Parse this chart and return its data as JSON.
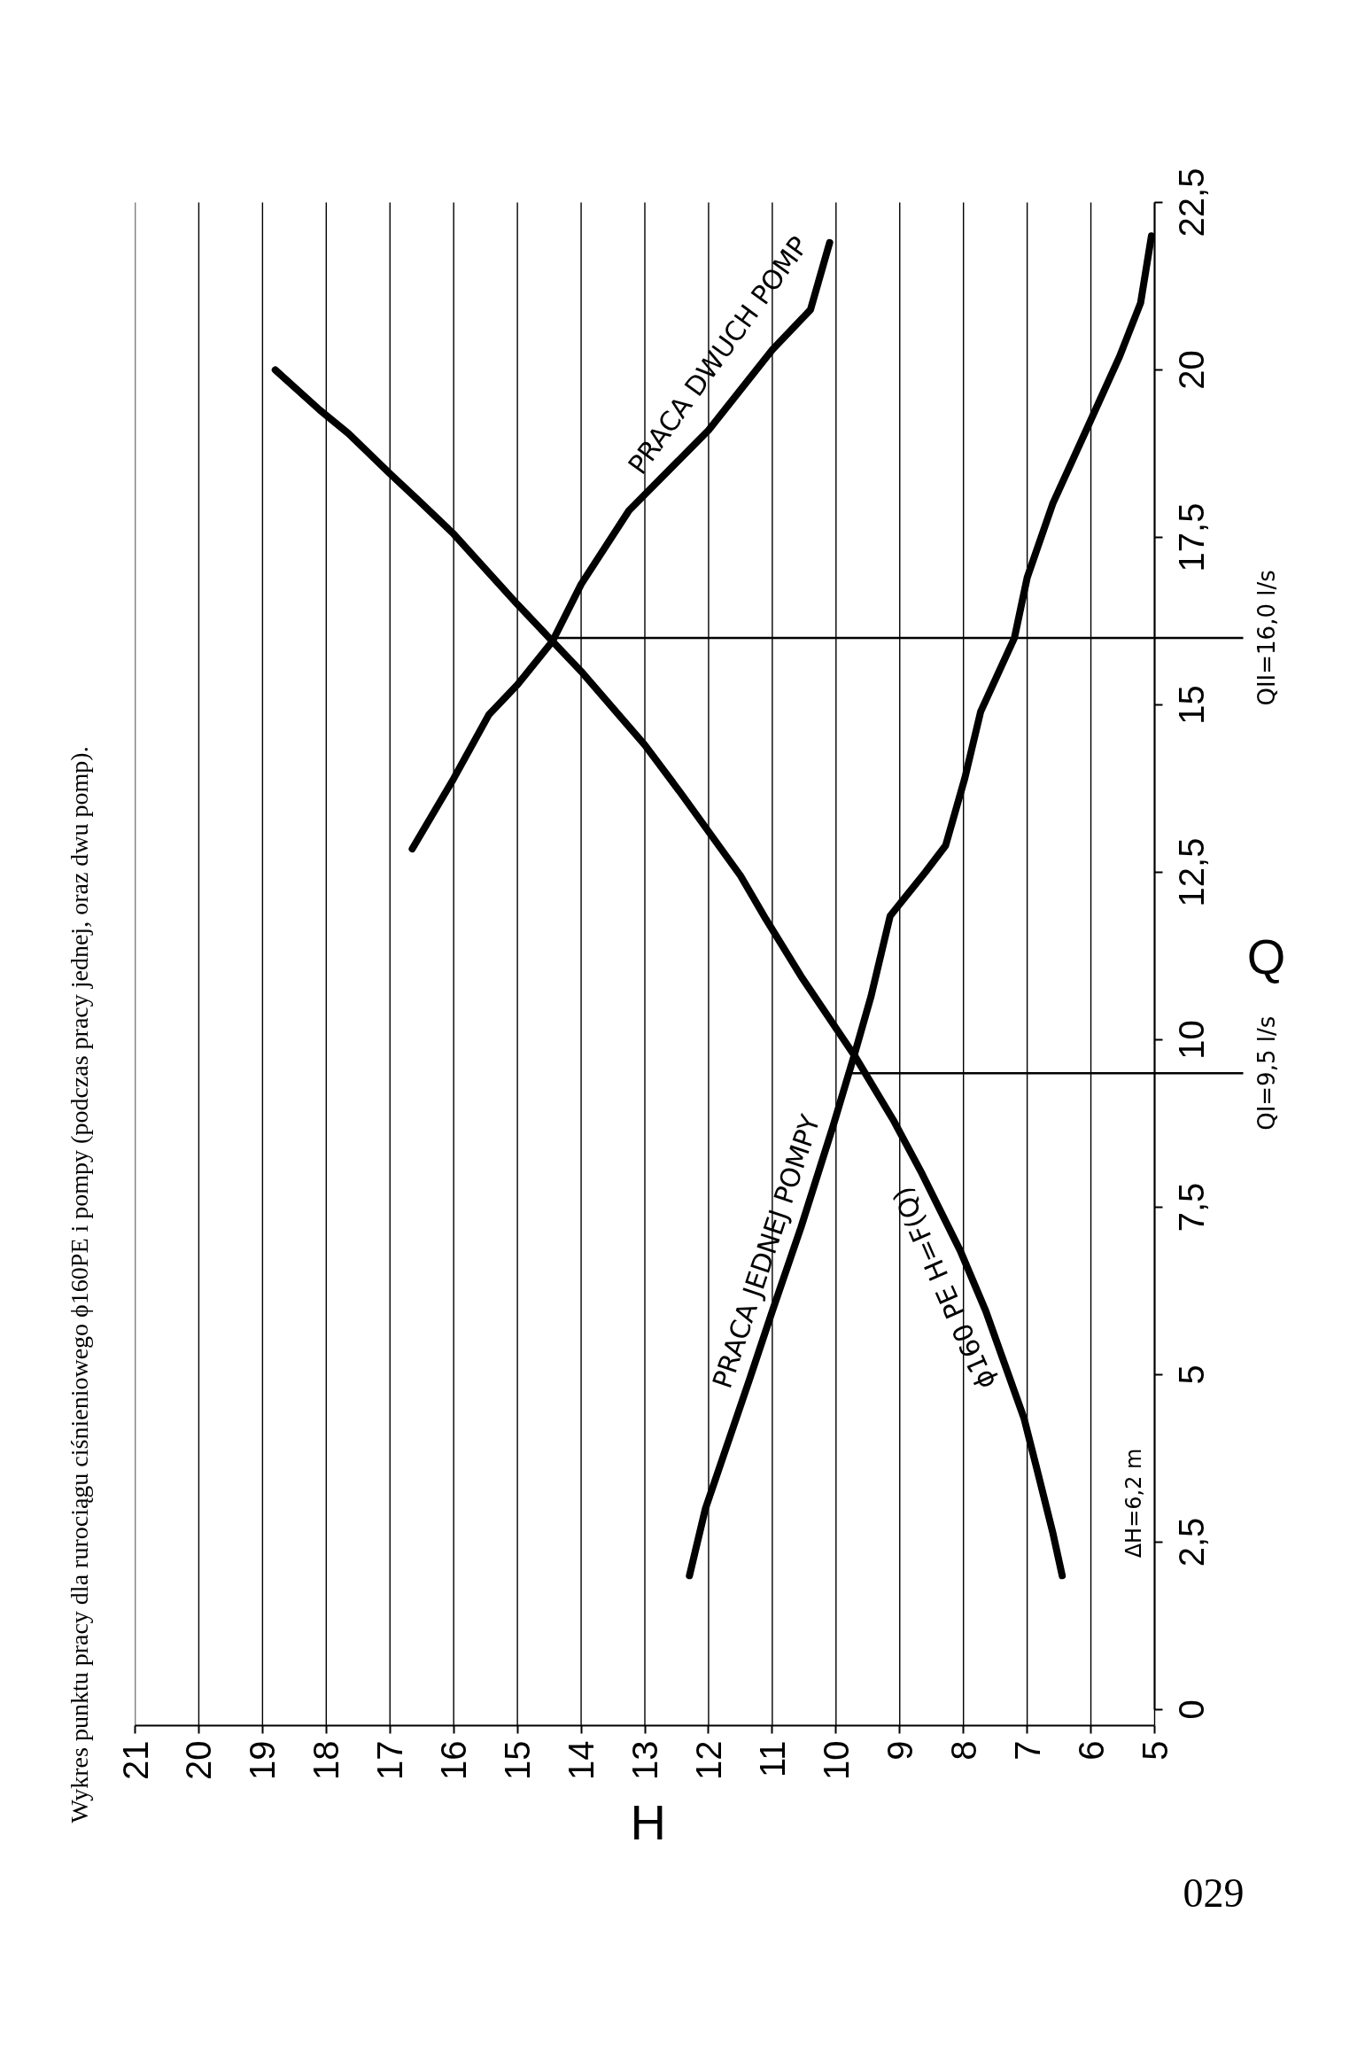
{
  "chart_data": {
    "type": "line",
    "title": "Wykres punktu pracy dla rurociągu ciśnieniowego ϕ160PE i pompy (podczas pracy jednej, oraz dwu pomp).",
    "xlabel": "H",
    "ylabel": "Q",
    "xlim": [
      21,
      5
    ],
    "ylim": [
      0,
      22.5
    ],
    "xticks": [
      21,
      20,
      19,
      18,
      17,
      16,
      15,
      14,
      13,
      12,
      11,
      10,
      9,
      8,
      7,
      6,
      5
    ],
    "yticks": [
      0,
      {
        "value": 2.5,
        "label": "2,5"
      },
      5,
      {
        "value": 7.5,
        "label": "7,5"
      },
      10,
      {
        "value": 12.5,
        "label": "12,5"
      },
      15,
      {
        "value": 17.5,
        "label": "17,5"
      },
      20,
      {
        "value": 22.5,
        "label": "22,5"
      }
    ],
    "grid": "x",
    "series": [
      {
        "name": "PRACA JEDNEJ POMPY",
        "color": "#000000",
        "x": [
          12.3,
          12.05,
          11.35,
          11.0,
          10.55,
          10.05,
          9.72,
          9.45,
          9.15,
          8.6,
          8.28,
          7.98,
          7.73,
          7.2,
          7.0,
          6.6,
          6.05,
          5.55,
          5.22,
          5.05
        ],
        "values": [
          2.0,
          3.0,
          4.95,
          5.95,
          7.2,
          8.7,
          9.75,
          10.65,
          11.85,
          12.5,
          12.9,
          13.9,
          14.9,
          16.0,
          16.9,
          18.0,
          19.15,
          20.2,
          21.0,
          22.0
        ]
      },
      {
        "name": "PRACA DWUCH POMP",
        "color": "#000000",
        "x": [
          16.65,
          16.0,
          15.45,
          15.0,
          14.45,
          14.0,
          13.25,
          12.0,
          11.0,
          10.4,
          10.1
        ],
        "values": [
          12.85,
          13.9,
          14.85,
          15.3,
          15.95,
          16.8,
          17.9,
          19.1,
          20.3,
          20.9,
          21.9
        ]
      },
      {
        "name": "ϕ160 PE H=F(Q)",
        "color": "#000000",
        "x": [
          6.45,
          6.6,
          6.85,
          7.05,
          7.35,
          7.65,
          8.05,
          8.65,
          9.1,
          9.7,
          10.55,
          11.1,
          11.5,
          12.45,
          13.0,
          14.0,
          14.45,
          15.0,
          16.0,
          16.55,
          17.0,
          17.65,
          18.1,
          18.8
        ],
        "values": [
          2.0,
          2.65,
          3.6,
          4.35,
          5.15,
          5.95,
          6.85,
          8.0,
          8.8,
          9.75,
          10.95,
          11.8,
          12.45,
          13.7,
          14.4,
          15.5,
          15.95,
          16.5,
          17.55,
          18.05,
          18.45,
          19.05,
          19.4,
          20.0
        ]
      }
    ],
    "ref_lines": [
      {
        "axis": "y",
        "value": 9.5,
        "label": "QI=9,5 l/s",
        "color": "#000000"
      },
      {
        "axis": "y",
        "value": 16.0,
        "label": "QII=16,0 l/s",
        "color": "#000000"
      }
    ],
    "annotations": [
      "ΔH=6,2 m",
      "029"
    ]
  }
}
